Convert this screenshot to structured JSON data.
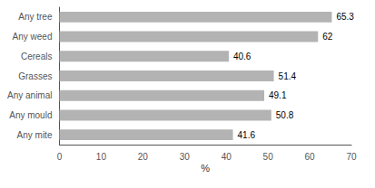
{
  "chart_data": {
    "type": "bar",
    "orientation": "horizontal",
    "categories": [
      "Any tree",
      "Any weed",
      "Cereals",
      "Grasses",
      "Any animal",
      "Any mould",
      "Any mite"
    ],
    "values": [
      65.3,
      62,
      40.6,
      51.4,
      49.1,
      50.8,
      41.6
    ],
    "color": "#b3b3b3",
    "xlabel": "%",
    "xlim": [
      0,
      70
    ],
    "xticks": [
      0,
      10,
      20,
      30,
      40,
      50,
      60,
      70
    ],
    "grid": false,
    "data_labels": true
  }
}
